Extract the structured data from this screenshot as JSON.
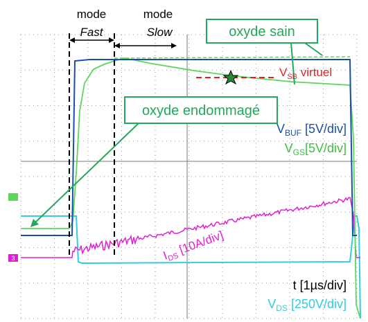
{
  "annotations": {
    "mode_fast": {
      "mode": "mode",
      "name": "Fast"
    },
    "mode_slow": {
      "mode": "mode",
      "name": "Slow"
    },
    "oxyde_sain": "oxyde sain",
    "oxyde_endommage": "oxyde endommagé",
    "vsb": {
      "main": "V",
      "sub": "SB",
      "rest": " virtuel"
    }
  },
  "channels": {
    "vbuf": {
      "main": "V",
      "sub": "BUF",
      "rest": " [5V/div]"
    },
    "vgs": {
      "main": "V",
      "sub": "GS",
      "rest": "[5V/div]"
    },
    "ids": {
      "main": "I",
      "sub": "DS",
      "rest": " [10A/div]"
    },
    "time": "t [1µs/div]",
    "vds": {
      "main": "V",
      "sub": "DS",
      "rest": " [250V/div]"
    },
    "marker": "3"
  }
}
